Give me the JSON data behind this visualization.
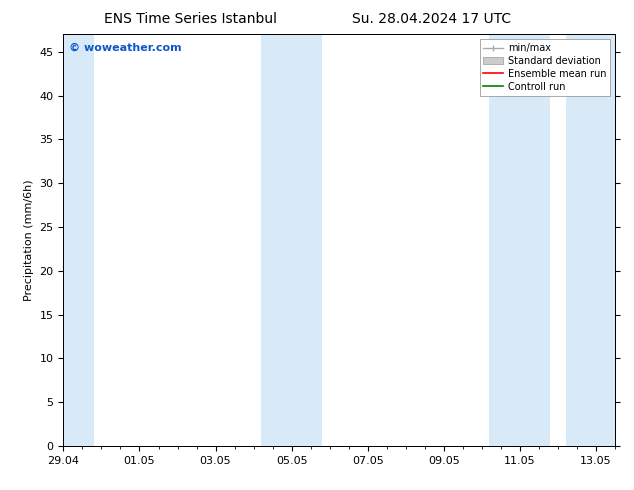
{
  "title_left": "ENS Time Series Istanbul",
  "title_right": "Su. 28.04.2024 17 UTC",
  "ylabel": "Precipitation (mm/6h)",
  "ylim": [
    0,
    47
  ],
  "yticks": [
    0,
    5,
    10,
    15,
    20,
    25,
    30,
    35,
    40,
    45
  ],
  "xtick_labels": [
    "29.04",
    "01.05",
    "03.05",
    "05.05",
    "07.05",
    "09.05",
    "11.05",
    "13.05"
  ],
  "xlim_days": [
    0,
    14.5
  ],
  "shaded_regions": [
    {
      "xmin": -0.2,
      "xmax": 0.8,
      "color": "#d8eaf7"
    },
    {
      "xmin": 5.2,
      "xmax": 6.8,
      "color": "#d8eaf7"
    },
    {
      "xmin": 11.2,
      "xmax": 12.8,
      "color": "#d8eaf7"
    },
    {
      "xmin": 13.2,
      "xmax": 14.5,
      "color": "#d8eaf7"
    }
  ],
  "watermark_text": "© woweather.com",
  "watermark_color": "#1155cc",
  "legend_labels": [
    "min/max",
    "Standard deviation",
    "Ensemble mean run",
    "Controll run"
  ],
  "legend_colors": [
    "#aaaaaa",
    "#cccccc",
    "red",
    "green"
  ],
  "background_color": "#ffffff",
  "title_fontsize": 10,
  "ylabel_fontsize": 8,
  "tick_fontsize": 8,
  "legend_fontsize": 7,
  "watermark_fontsize": 8
}
